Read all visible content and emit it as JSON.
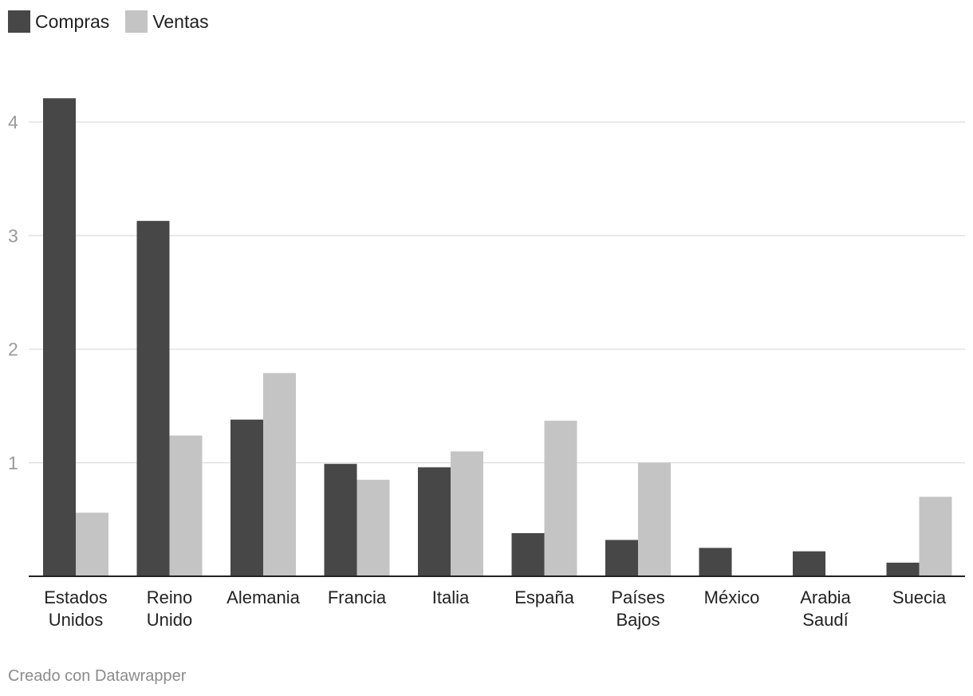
{
  "chart_data": {
    "type": "bar",
    "categories": [
      "Estados Unidos",
      "Reino Unido",
      "Alemania",
      "Francia",
      "Italia",
      "España",
      "Países Bajos",
      "México",
      "Arabia Saudí",
      "Suecia"
    ],
    "category_lines": [
      [
        "Estados",
        "Unidos"
      ],
      [
        "Reino",
        "Unido"
      ],
      [
        "Alemania"
      ],
      [
        "Francia"
      ],
      [
        "Italia"
      ],
      [
        "España"
      ],
      [
        "Países",
        "Bajos"
      ],
      [
        "México"
      ],
      [
        "Arabia",
        "Saudí"
      ],
      [
        "Suecia"
      ]
    ],
    "series": [
      {
        "name": "Compras",
        "color": "#474747",
        "values": [
          4.21,
          3.13,
          1.38,
          0.99,
          0.96,
          0.38,
          0.32,
          0.25,
          0.22,
          0.12
        ]
      },
      {
        "name": "Ventas",
        "color": "#c4c4c4",
        "values": [
          0.56,
          1.24,
          1.79,
          0.85,
          1.1,
          1.37,
          1.0,
          0,
          0,
          0.7
        ]
      }
    ],
    "yticks": [
      "1",
      "2",
      "3",
      "4"
    ],
    "ylim": [
      0,
      4.4
    ],
    "grid": true,
    "legend": "top-left",
    "title": "",
    "xlabel": "",
    "ylabel": ""
  },
  "footer": {
    "credit": "Creado con Datawrapper"
  }
}
